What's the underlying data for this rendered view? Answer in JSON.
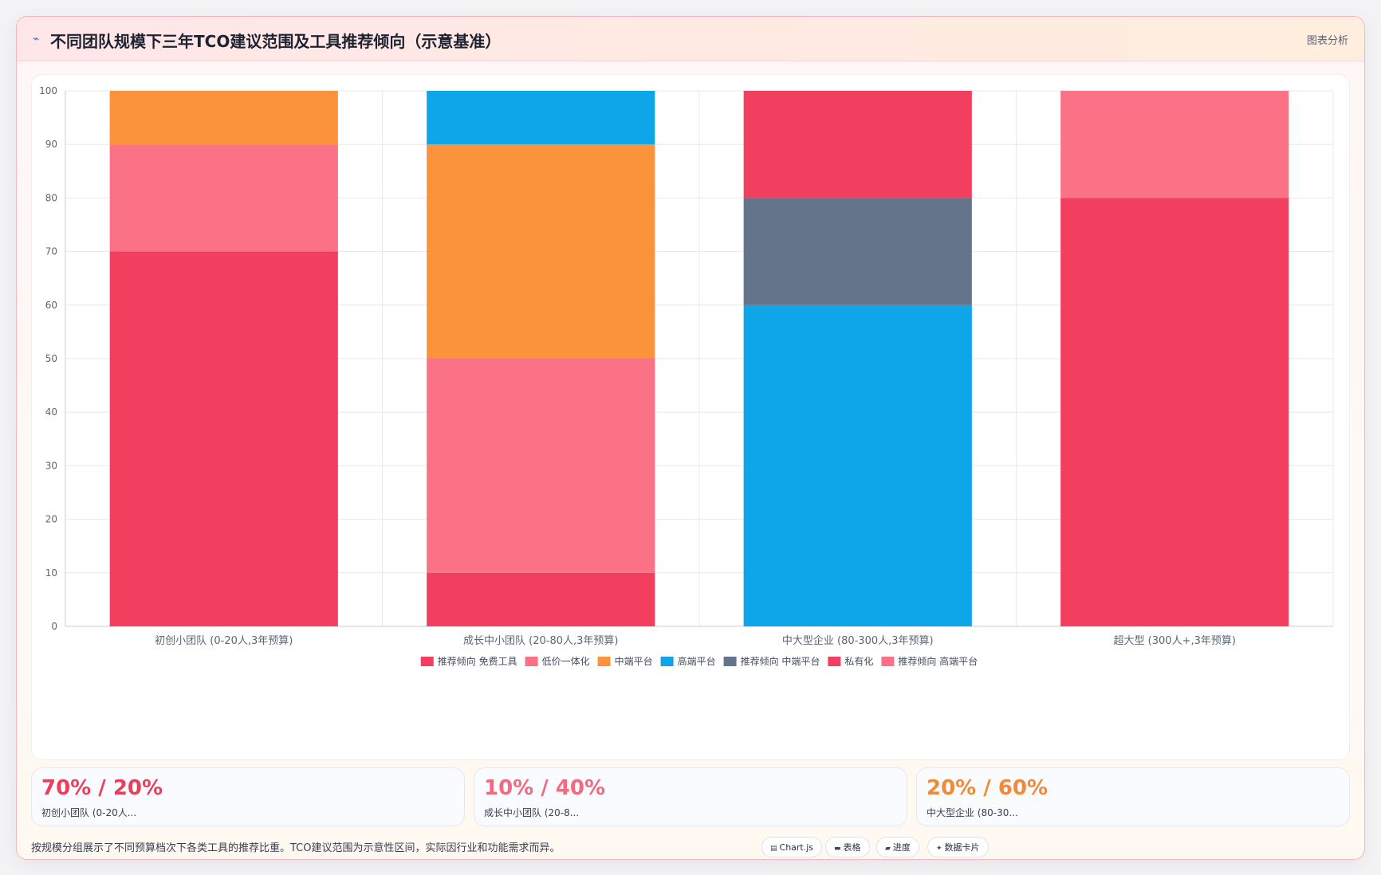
{
  "header": {
    "icon": "trend-icon",
    "title": "不同团队规模下三年TCO建议范围及工具推荐倾向（示意基准）",
    "analysis_label": "图表分析"
  },
  "chart_data": {
    "type": "bar",
    "stacked": true,
    "categories": [
      "初创小团队 (0-20人,3年预算)",
      "成长中小团队 (20-80人,3年预算)",
      "中大型企业 (80-300人,3年预算)",
      "超大型 (300人+,3年预算)"
    ],
    "series": [
      {
        "name": "推荐倾向 免费工具",
        "color": "#f23f5f",
        "values": [
          70,
          10,
          0,
          0
        ]
      },
      {
        "name": "低价一体化",
        "color": "#fb7185",
        "values": [
          20,
          40,
          0,
          0
        ]
      },
      {
        "name": "中端平台",
        "color": "#fb923c",
        "values": [
          10,
          40,
          0,
          0
        ]
      },
      {
        "name": "高端平台",
        "color": "#0ea5e9",
        "values": [
          0,
          10,
          60,
          0
        ]
      },
      {
        "name": "推荐倾向 中端平台",
        "color": "#64748b",
        "values": [
          0,
          0,
          20,
          0
        ]
      },
      {
        "name": "私有化",
        "color": "#f23f5f",
        "values": [
          0,
          0,
          20,
          80
        ]
      },
      {
        "name": "推荐倾向 高端平台",
        "color": "#fb7185",
        "values": [
          0,
          0,
          0,
          20
        ]
      }
    ],
    "yticks": [
      "0",
      "10",
      "20",
      "30",
      "40",
      "50",
      "60",
      "70",
      "80",
      "90",
      "100"
    ],
    "ylim": [
      0,
      100
    ],
    "grid": true,
    "legend_position": "bottom"
  },
  "stats": [
    {
      "value": "70% / 20%",
      "label": "初创小团队 (0-20人...",
      "color": "#e8405c"
    },
    {
      "value": "10% / 40%",
      "label": "成长中小团队 (20-8...",
      "color": "#f06b80"
    },
    {
      "value": "20% / 60%",
      "label": "中大型企业 (80-30...",
      "color": "#f08a38"
    }
  ],
  "footer": {
    "note": "按规模分组展示了不同预算档次下各类工具的推荐比重。TCO建议范围为示意性区间，实际因行业和功能需求而异。",
    "pills": [
      {
        "icon": "chart-icon",
        "label": "Chart.js"
      },
      {
        "icon": "table-icon",
        "label": "表格"
      },
      {
        "icon": "progress-icon",
        "label": "进度"
      },
      {
        "icon": "sparkle-icon",
        "label": "数据卡片"
      }
    ]
  }
}
